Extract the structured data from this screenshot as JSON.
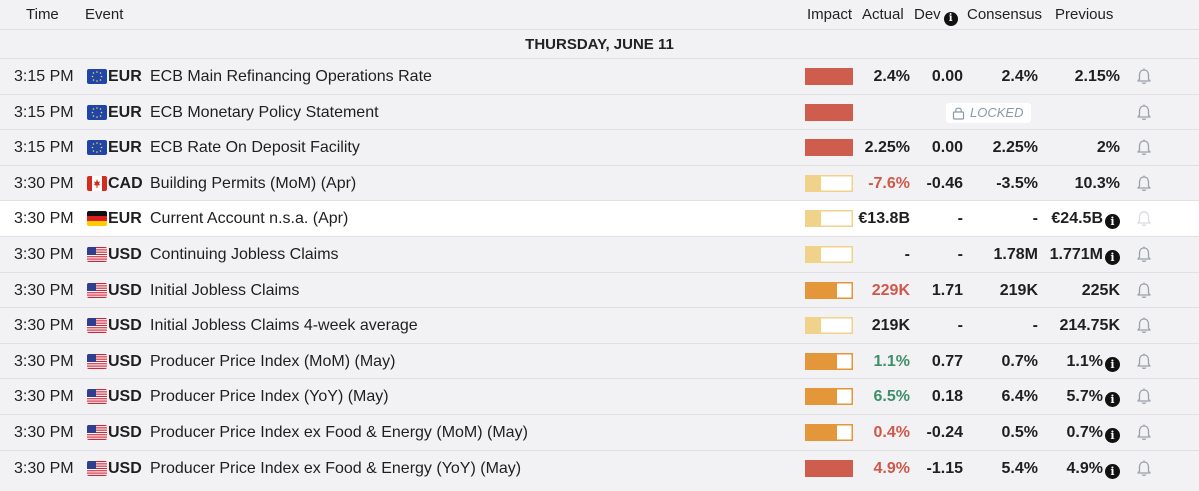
{
  "header": {
    "time": "Time",
    "event": "Event",
    "impact": "Impact",
    "actual": "Actual",
    "dev": "Dev",
    "consensus": "Consensus",
    "previous": "Previous"
  },
  "day_label": "THURSDAY, JUNE 11",
  "locked_label": "LOCKED",
  "info_glyph": "i",
  "colors": {
    "high": "#cf5d4e",
    "medium": "#e3963a",
    "low": "#f1d28a",
    "negative": "#d0584a",
    "positive": "#3f8f6a"
  },
  "rows": [
    {
      "time": "3:15 PM",
      "flag": "eu",
      "currency": "EUR",
      "event": "ECB Main Refinancing Operations Rate",
      "impact": "high",
      "actual": "2.4%",
      "actual_tone": "",
      "dev": "0.00",
      "consensus": "2.4%",
      "previous": "2.15%",
      "previous_info": false,
      "locked": false,
      "highlight": false
    },
    {
      "time": "3:15 PM",
      "flag": "eu",
      "currency": "EUR",
      "event": "ECB Monetary Policy Statement",
      "impact": "high",
      "actual": "",
      "actual_tone": "",
      "dev": "",
      "consensus": "",
      "previous": "",
      "previous_info": false,
      "locked": true,
      "highlight": false
    },
    {
      "time": "3:15 PM",
      "flag": "eu",
      "currency": "EUR",
      "event": "ECB Rate On Deposit Facility",
      "impact": "high",
      "actual": "2.25%",
      "actual_tone": "",
      "dev": "0.00",
      "consensus": "2.25%",
      "previous": "2%",
      "previous_info": false,
      "locked": false,
      "highlight": false
    },
    {
      "time": "3:30 PM",
      "flag": "ca",
      "currency": "CAD",
      "event": "Building Permits (MoM) (Apr)",
      "impact": "low",
      "actual": "-7.6%",
      "actual_tone": "negative",
      "dev": "-0.46",
      "consensus": "-3.5%",
      "previous": "10.3%",
      "previous_info": false,
      "locked": false,
      "highlight": false
    },
    {
      "time": "3:30 PM",
      "flag": "de",
      "currency": "EUR",
      "event": "Current Account n.s.a. (Apr)",
      "impact": "low",
      "actual": "€13.8B",
      "actual_tone": "",
      "dev": "-",
      "consensus": "-",
      "previous": "€24.5B",
      "previous_info": true,
      "locked": false,
      "highlight": true
    },
    {
      "time": "3:30 PM",
      "flag": "us",
      "currency": "USD",
      "event": "Continuing Jobless Claims",
      "impact": "low",
      "actual": "-",
      "actual_tone": "",
      "dev": "-",
      "consensus": "1.78M",
      "previous": "1.771M",
      "previous_info": true,
      "locked": false,
      "highlight": false
    },
    {
      "time": "3:30 PM",
      "flag": "us",
      "currency": "USD",
      "event": "Initial Jobless Claims",
      "impact": "medium",
      "actual": "229K",
      "actual_tone": "negative",
      "dev": "1.71",
      "consensus": "219K",
      "previous": "225K",
      "previous_info": false,
      "locked": false,
      "highlight": false
    },
    {
      "time": "3:30 PM",
      "flag": "us",
      "currency": "USD",
      "event": "Initial Jobless Claims 4-week average",
      "impact": "low",
      "actual": "219K",
      "actual_tone": "",
      "dev": "-",
      "consensus": "-",
      "previous": "214.75K",
      "previous_info": false,
      "locked": false,
      "highlight": false
    },
    {
      "time": "3:30 PM",
      "flag": "us",
      "currency": "USD",
      "event": "Producer Price Index (MoM) (May)",
      "impact": "medium",
      "actual": "1.1%",
      "actual_tone": "positive",
      "dev": "0.77",
      "consensus": "0.7%",
      "previous": "1.1%",
      "previous_info": true,
      "locked": false,
      "highlight": false
    },
    {
      "time": "3:30 PM",
      "flag": "us",
      "currency": "USD",
      "event": "Producer Price Index (YoY) (May)",
      "impact": "medium",
      "actual": "6.5%",
      "actual_tone": "positive",
      "dev": "0.18",
      "consensus": "6.4%",
      "previous": "5.7%",
      "previous_info": true,
      "locked": false,
      "highlight": false
    },
    {
      "time": "3:30 PM",
      "flag": "us",
      "currency": "USD",
      "event": "Producer Price Index ex Food & Energy (MoM) (May)",
      "impact": "medium",
      "actual": "0.4%",
      "actual_tone": "negative",
      "dev": "-0.24",
      "consensus": "0.5%",
      "previous": "0.7%",
      "previous_info": true,
      "locked": false,
      "highlight": false
    },
    {
      "time": "3:30 PM",
      "flag": "us",
      "currency": "USD",
      "event": "Producer Price Index ex Food & Energy (YoY) (May)",
      "impact": "high",
      "actual": "4.9%",
      "actual_tone": "negative",
      "dev": "-1.15",
      "consensus": "5.4%",
      "previous": "4.9%",
      "previous_info": true,
      "locked": false,
      "highlight": false
    }
  ]
}
